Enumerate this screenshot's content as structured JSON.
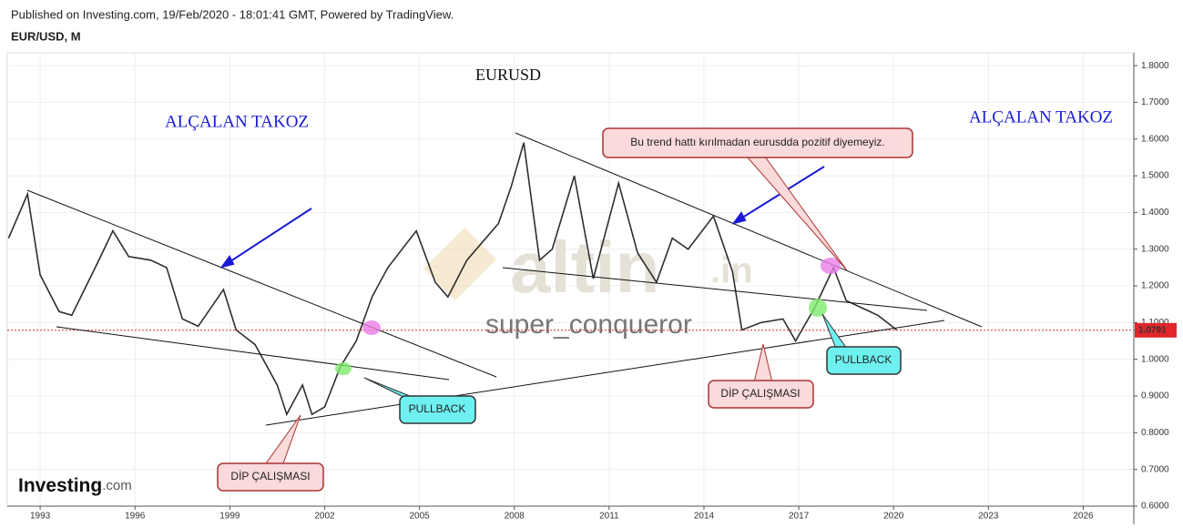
{
  "header": {
    "published": "Published on Investing.com, 19/Feb/2020 - 18:01:41 GMT, Powered by TradingView.",
    "symbol": "EUR/USD, M"
  },
  "chart_data": {
    "type": "line",
    "title": "EURUSD",
    "x": [
      1992.0,
      1992.6,
      1993.0,
      1993.6,
      1994.0,
      1994.8,
      1995.3,
      1995.8,
      1996.5,
      1997.0,
      1997.5,
      1998.0,
      1998.8,
      1999.2,
      1999.8,
      2000.5,
      2000.8,
      2001.3,
      2001.6,
      2002.0,
      2002.5,
      2003.0,
      2003.5,
      2004.0,
      2004.9,
      2005.5,
      2005.9,
      2006.5,
      2007.0,
      2007.5,
      2007.9,
      2008.3,
      2008.8,
      2009.2,
      2009.9,
      2010.5,
      2011.3,
      2011.9,
      2012.5,
      2013.0,
      2013.5,
      2014.3,
      2014.9,
      2015.2,
      2015.8,
      2016.5,
      2016.9,
      2017.5,
      2018.1,
      2018.5,
      2019.0,
      2019.5,
      2019.8,
      2020.1
    ],
    "series": [
      {
        "name": "EURUSD",
        "color": "#2e2e2e",
        "values": [
          1.33,
          1.45,
          1.23,
          1.13,
          1.12,
          1.26,
          1.35,
          1.28,
          1.27,
          1.25,
          1.11,
          1.09,
          1.19,
          1.08,
          1.04,
          0.93,
          0.85,
          0.93,
          0.85,
          0.87,
          0.98,
          1.05,
          1.17,
          1.25,
          1.35,
          1.21,
          1.17,
          1.27,
          1.32,
          1.37,
          1.47,
          1.59,
          1.27,
          1.3,
          1.5,
          1.22,
          1.48,
          1.29,
          1.21,
          1.33,
          1.3,
          1.39,
          1.24,
          1.08,
          1.1,
          1.11,
          1.05,
          1.14,
          1.25,
          1.16,
          1.14,
          1.12,
          1.1,
          1.08
        ]
      }
    ],
    "xlim": [
      1991.96,
      2027.6
    ],
    "xticks": [
      1993,
      1996,
      1999,
      2002,
      2005,
      2008,
      2011,
      2014,
      2017,
      2020,
      2023,
      2026
    ],
    "ylim": [
      0.6,
      1.835
    ],
    "yticks": [
      {
        "value": 0.6,
        "label": "0.6000"
      },
      {
        "value": 0.7,
        "label": "0.7000"
      },
      {
        "value": 0.8,
        "label": "0.8000"
      },
      {
        "value": 0.9,
        "label": "0.9000"
      },
      {
        "value": 1.0,
        "label": "1.0000"
      },
      {
        "value": 1.1,
        "label": "1.1000"
      },
      {
        "value": 1.2,
        "label": "1.2000"
      },
      {
        "value": 1.3,
        "label": "1.3000"
      },
      {
        "value": 1.4,
        "label": "1.4000"
      },
      {
        "value": 1.5,
        "label": "1.5000"
      },
      {
        "value": 1.6,
        "label": "1.6000"
      },
      {
        "value": 1.7,
        "label": "1.7000"
      },
      {
        "value": 1.8,
        "label": "1.8000"
      }
    ],
    "grid": true,
    "current_price": 1.0791,
    "current_price_color": "#e0262b",
    "annotations": {
      "wedge_left": "ALÇALAN TAKOZ",
      "wedge_right": "ALÇALAN TAKOZ",
      "callout_trend": "Bu trend hattı kırılmadan eurusdda pozitif diyemeyiz.",
      "pullback_1": "PULLBACK",
      "pullback_2": "PULLBACK",
      "dip_1": "DİP ÇALIŞMASI",
      "dip_2": "DİP ÇALIŞMASI"
    },
    "watermark": {
      "brand": "altin",
      "tld": ".in",
      "author": "super_conqueror"
    }
  },
  "logo": {
    "name": "Investing",
    "suffix": ".com"
  }
}
